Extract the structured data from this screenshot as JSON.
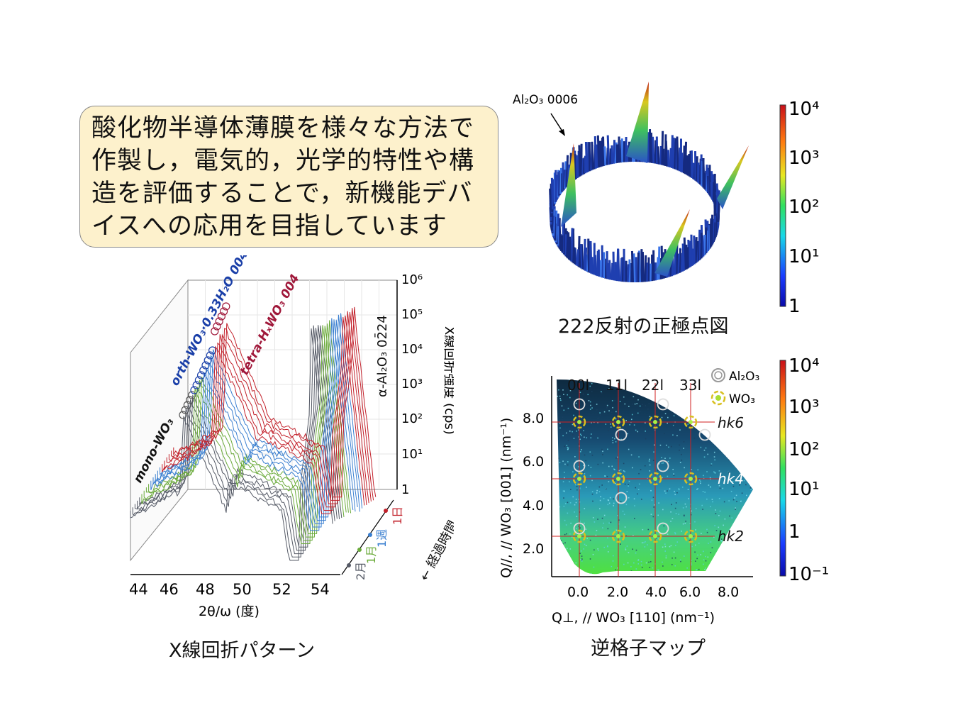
{
  "callout": {
    "lines": [
      "酸化物半導体薄膜を様々な方法で",
      "作製し，電気的，光学的特性や構",
      "造を評価することで，新機能デバ",
      "イスへの応用を目指しています"
    ]
  },
  "xrd": {
    "caption": "X線回折パターン",
    "x_ticks": [
      "44",
      "46",
      "48",
      "50",
      "52",
      "54"
    ],
    "x_label": "2θ/ω (度)",
    "y_ticks": [
      "10⁶",
      "10⁵",
      "10⁴",
      "10³",
      "10²",
      "10¹",
      "1"
    ],
    "y_label": "X線回折強度 (cps)",
    "time_axis_label": "← 経過時間",
    "time_labels": [
      "1日",
      "1週",
      "1月",
      "2月"
    ],
    "annotations": {
      "mono": "mono-WO₃",
      "orth": "orth-WO₃·0.33H₂O 004",
      "tetra": "tetra-HₓWO₃ 004",
      "substrate": "α-Al₂O₃ 02̄24"
    },
    "colors": {
      "2月": "#555a66",
      "1月": "#6aaa3a",
      "1週": "#3a7fd0",
      "1日": "#c2202a"
    }
  },
  "pole": {
    "caption": "222反射の正極点図",
    "peak_label": "Al₂O₃ 0006",
    "colorbar_ticks": [
      "10⁴",
      "10³",
      "10²",
      "10¹",
      "1"
    ]
  },
  "rsm": {
    "caption": "逆格子マップ",
    "x_ticks": [
      "0.0",
      "2.0",
      "4.0",
      "6.0",
      "8.0"
    ],
    "y_ticks": [
      "8.0",
      "6.0",
      "4.0",
      "2.0"
    ],
    "x_label": "Q⊥, // WO₃ [110] (nm⁻¹)",
    "y_label": "Q//, // WO₃ [001] (nm⁻¹)",
    "column_labels": [
      "00l",
      "11l",
      "22l",
      "33l"
    ],
    "row_labels": [
      "hk6",
      "hk4",
      "hk2"
    ],
    "legend": [
      "Al₂O₃",
      "WO₃"
    ],
    "colorbar_ticks": [
      "10⁴",
      "10³",
      "10²",
      "10¹",
      "1",
      "10⁻¹"
    ]
  }
}
